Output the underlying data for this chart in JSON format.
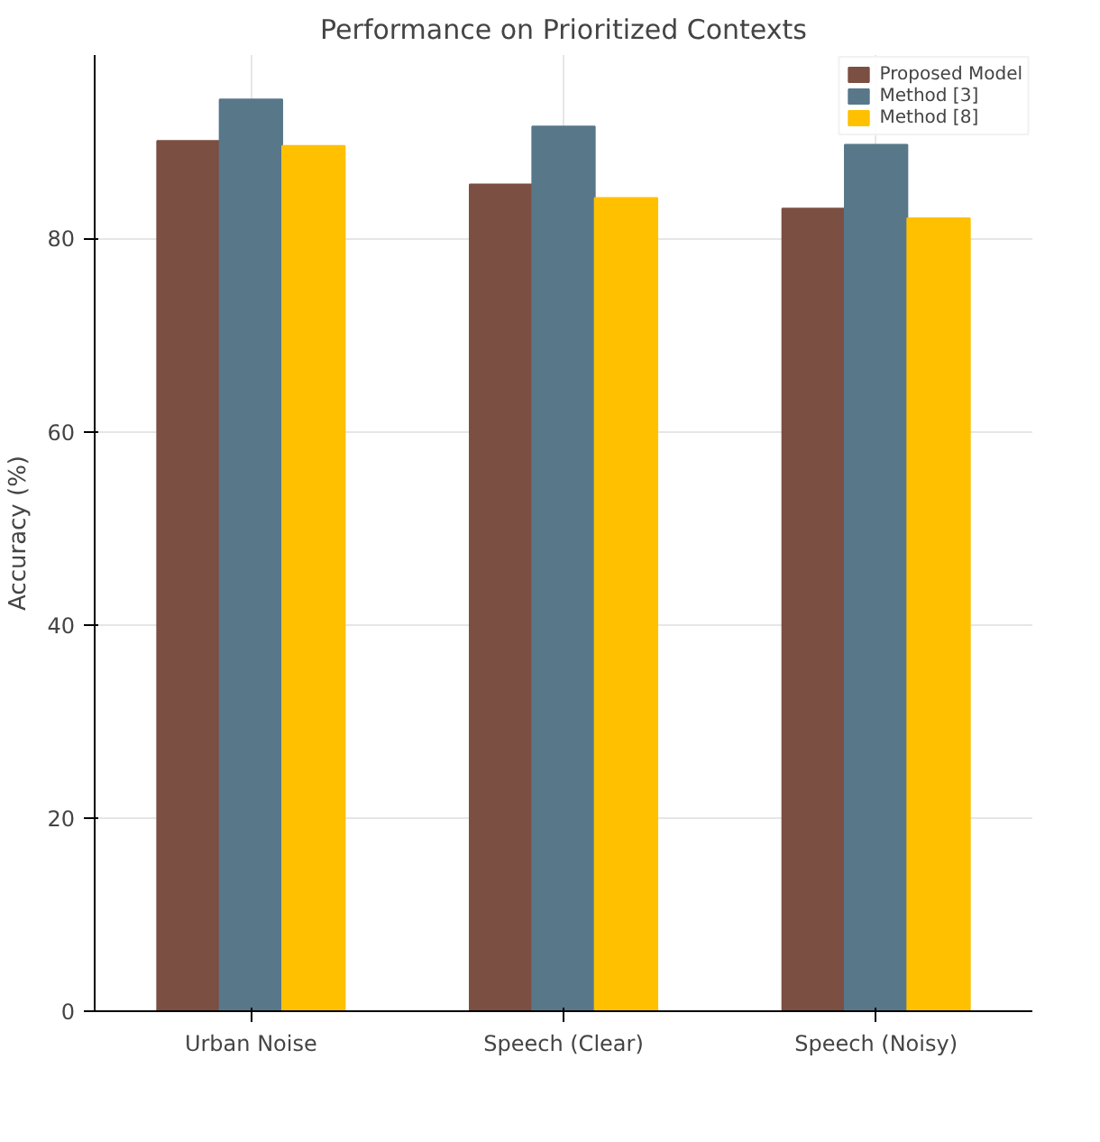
{
  "chart_data": {
    "type": "bar",
    "title": "Performance on Prioritized Contexts",
    "ylabel": "Accuracy (%)",
    "categories": [
      "Urban Noise",
      "Speech (Clear)",
      "Speech (Noisy)"
    ],
    "series": [
      {
        "name": "Proposed Model",
        "color": "#7b4f42",
        "values": [
          90.1,
          85.6,
          83.1
        ]
      },
      {
        "name": "Method [3]",
        "color": "#58788a",
        "values": [
          94.4,
          91.6,
          89.7
        ]
      },
      {
        "name": "Method [8]",
        "color": "#ffc000",
        "values": [
          89.6,
          84.2,
          82.1
        ]
      }
    ],
    "ylim": [
      0,
      99
    ],
    "yticks": [
      0,
      20,
      40,
      60,
      80
    ],
    "grid": true,
    "legend": "top right"
  }
}
